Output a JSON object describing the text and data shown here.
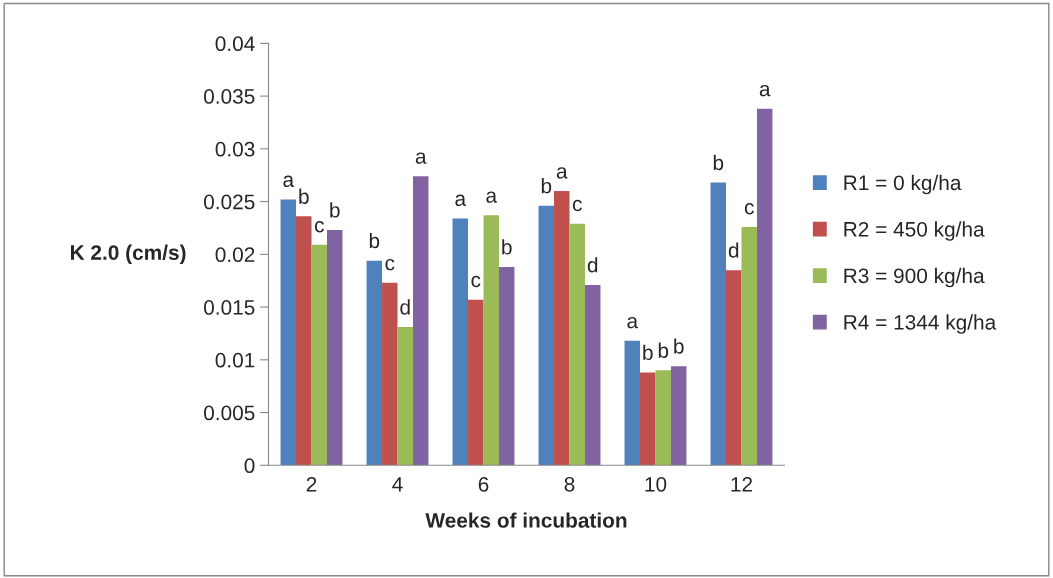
{
  "chart_data": {
    "type": "bar",
    "xlabel": "Weeks of incubation",
    "ylabel": "K 2.0 (cm/s)",
    "categories": [
      "2",
      "4",
      "6",
      "8",
      "10",
      "12"
    ],
    "series": [
      {
        "name": "R1 = 0 kg/ha",
        "color": "#4f81bd",
        "values": [
          0.0252,
          0.0194,
          0.0234,
          0.0246,
          0.0118,
          0.0268
        ],
        "value_labels": [
          "a",
          "b",
          "a",
          "b",
          "a",
          "b"
        ]
      },
      {
        "name": "R2 = 450 kg/ha",
        "color": "#c0504d",
        "values": [
          0.0236,
          0.0173,
          0.0157,
          0.026,
          0.0088,
          0.0185
        ],
        "value_labels": [
          "b",
          "c",
          "c",
          "a",
          "b",
          "d"
        ]
      },
      {
        "name": "R3 = 900 kg/ha",
        "color": "#9bbb59",
        "values": [
          0.0209,
          0.0131,
          0.0237,
          0.0229,
          0.009,
          0.0226
        ],
        "value_labels": [
          "c",
          "d",
          "a",
          "c",
          "b",
          "c"
        ]
      },
      {
        "name": "R4 = 1344 kg/ha",
        "color": "#8064a2",
        "values": [
          0.0223,
          0.0274,
          0.0188,
          0.0171,
          0.0094,
          0.0338
        ],
        "value_labels": [
          "b",
          "a",
          "b",
          "d",
          "b",
          "a"
        ]
      }
    ],
    "ylim": [
      0,
      0.04
    ],
    "yticks": [
      0,
      0.005,
      0.01,
      0.015,
      0.02,
      0.025,
      0.03,
      0.035,
      0.04
    ],
    "grid": false,
    "legend": "right"
  }
}
